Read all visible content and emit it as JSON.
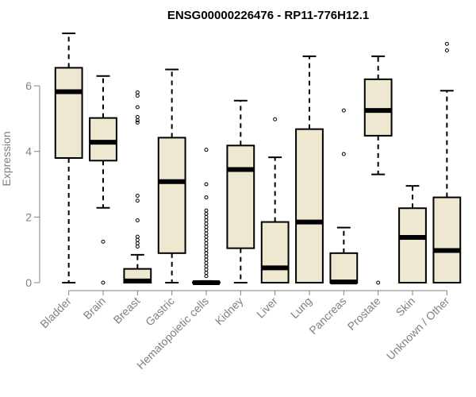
{
  "chart_data": {
    "type": "boxplot",
    "title": "ENSG00000226476 - RP11-776H12.1",
    "ylabel": "Expression",
    "ylim": [
      0,
      7.6
    ],
    "yticks": [
      0,
      2,
      4,
      6
    ],
    "box_color": "#EFE8D0",
    "categories": [
      "Bladder",
      "Brain",
      "Breast",
      "Gastric",
      "Hematopoietic cells",
      "Kidney",
      "Liver",
      "Lung",
      "Pancreas",
      "Prostate",
      "Skin",
      "Unknown / Other"
    ],
    "boxes": [
      {
        "whislo": 0.0,
        "q1": 3.8,
        "med": 5.82,
        "q3": 6.55,
        "whishi": 7.6,
        "fliers": []
      },
      {
        "whislo": 2.28,
        "q1": 3.72,
        "med": 4.28,
        "q3": 5.02,
        "whishi": 6.3,
        "fliers": [
          1.25,
          0.0
        ]
      },
      {
        "whislo": 0.0,
        "q1": 0.0,
        "med": 0.05,
        "q3": 0.42,
        "whishi": 0.85,
        "fliers": [
          5.8,
          5.7,
          5.35,
          5.05,
          4.95,
          4.88,
          2.65,
          2.5,
          1.9,
          1.4,
          1.3,
          1.2,
          1.1
        ]
      },
      {
        "whislo": 0.0,
        "q1": 0.9,
        "med": 3.08,
        "q3": 4.42,
        "whishi": 6.5,
        "fliers": []
      },
      {
        "whislo": 0.0,
        "q1": 0.0,
        "med": 0.0,
        "q3": 0.02,
        "whishi": 0.05,
        "fliers": [
          4.05,
          3.0,
          2.6,
          2.2,
          2.1,
          2.0,
          1.9,
          1.8,
          1.7,
          1.6,
          1.5,
          1.4,
          1.3,
          1.2,
          1.1,
          1.0,
          0.9,
          0.8,
          0.7,
          0.6,
          0.5,
          0.4,
          0.3,
          0.2
        ]
      },
      {
        "whislo": 0.0,
        "q1": 1.05,
        "med": 3.45,
        "q3": 4.18,
        "whishi": 5.55,
        "fliers": []
      },
      {
        "whislo": 0.0,
        "q1": 0.0,
        "med": 0.45,
        "q3": 1.85,
        "whishi": 3.82,
        "fliers": [
          4.98
        ]
      },
      {
        "whislo": 0.0,
        "q1": 0.0,
        "med": 1.85,
        "q3": 4.68,
        "whishi": 6.9,
        "fliers": []
      },
      {
        "whislo": 0.0,
        "q1": 0.0,
        "med": 0.02,
        "q3": 0.9,
        "whishi": 1.68,
        "fliers": [
          5.25,
          3.92
        ]
      },
      {
        "whislo": 3.3,
        "q1": 4.48,
        "med": 5.25,
        "q3": 6.2,
        "whishi": 6.9,
        "fliers": [
          0.0
        ]
      },
      {
        "whislo": 0.0,
        "q1": 0.0,
        "med": 1.38,
        "q3": 2.27,
        "whishi": 2.95,
        "fliers": []
      },
      {
        "whislo": 0.0,
        "q1": 0.0,
        "med": 0.98,
        "q3": 2.6,
        "whishi": 5.85,
        "fliers": [
          7.28,
          7.08
        ]
      }
    ]
  }
}
